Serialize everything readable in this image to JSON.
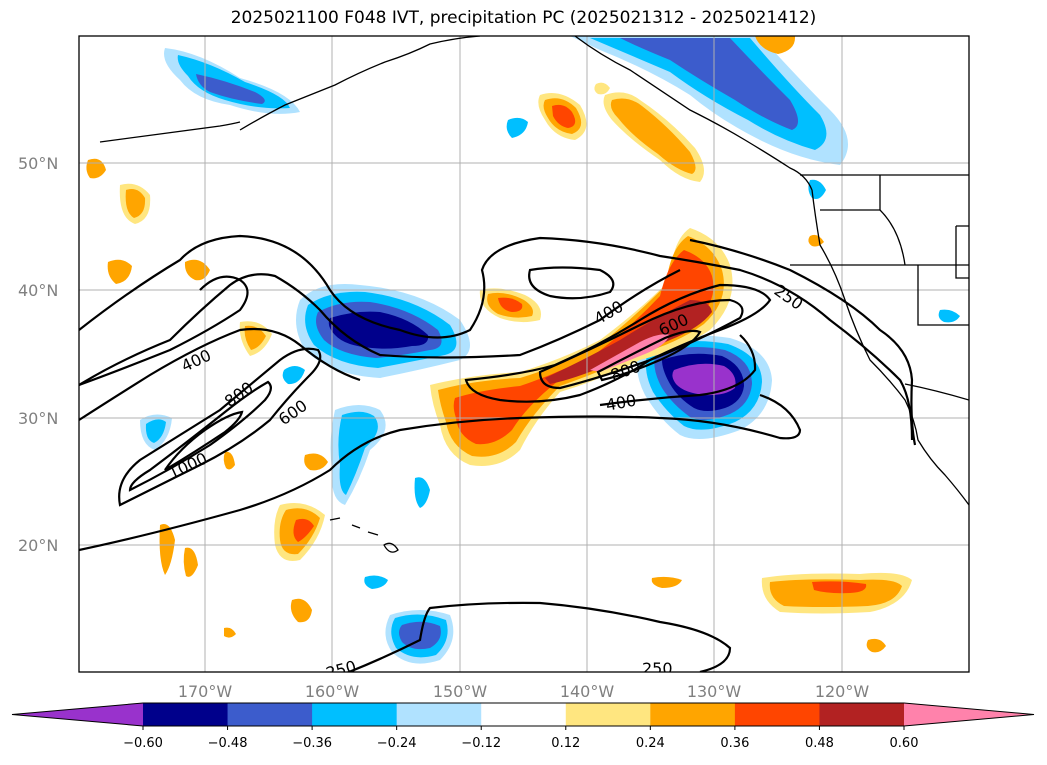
{
  "title": "2025021100 F048 IVT, precipitation PC (2025021312 - 2025021412)",
  "chart_data": {
    "type": "map-contour",
    "lat_labels": [
      "50°N",
      "40°N",
      "30°N",
      "20°N"
    ],
    "lon_labels": [
      "170°W",
      "160°W",
      "150°W",
      "140°W",
      "130°W",
      "120°W"
    ],
    "lat_values": [
      50,
      40,
      30,
      20
    ],
    "lon_values": [
      -170,
      -160,
      -150,
      -140,
      -130,
      -120
    ],
    "extent": {
      "lon": [
        -180,
        -110
      ],
      "lat": [
        10,
        60
      ]
    },
    "grid": true,
    "ivt_contour_labels": [
      "1000",
      "800",
      "600",
      "400",
      "400",
      "250",
      "400",
      "800",
      "600",
      "250",
      "250"
    ],
    "colorbar": {
      "ticks": [
        "−0.60",
        "−0.48",
        "−0.36",
        "−0.24",
        "−0.12",
        "0.12",
        "0.24",
        "0.36",
        "0.48",
        "0.60"
      ],
      "levels": [
        -0.6,
        -0.48,
        -0.36,
        -0.24,
        -0.12,
        0.12,
        0.24,
        0.36,
        0.48,
        0.6
      ],
      "colors": [
        "#9932cc",
        "#00008b",
        "#3c5ccc",
        "#00bfff",
        "#b0e2ff",
        "#ffffff",
        "#ffe680",
        "#ffa500",
        "#ff4500",
        "#b22222",
        "#ff82ab"
      ],
      "extend": "both"
    }
  }
}
